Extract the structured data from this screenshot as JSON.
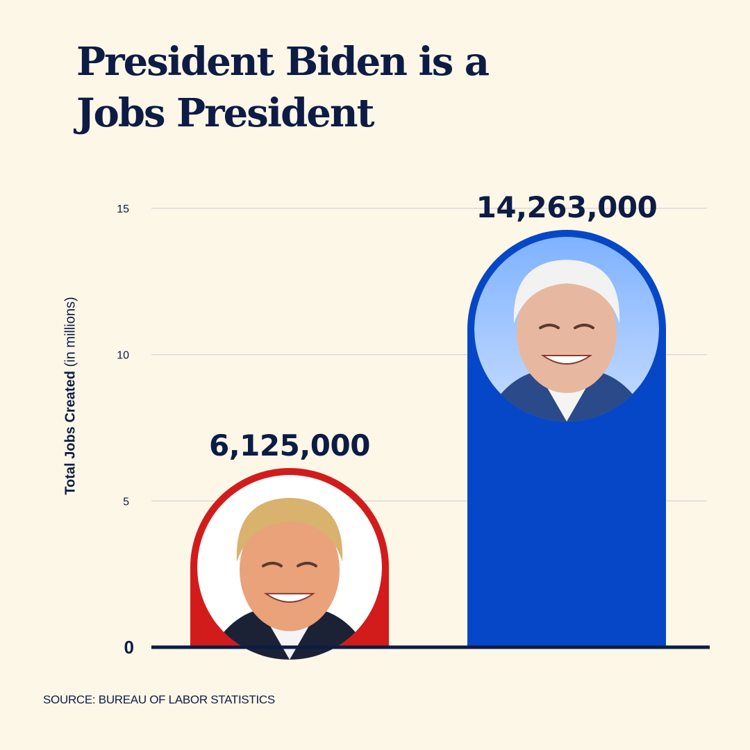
{
  "title": "President Biden is a Jobs President",
  "source": "SOURCE: BUREAU OF LABOR STATISTICS",
  "colors": {
    "background": "#fdf7e8",
    "navy": "#0d1c45",
    "trump_red": "#d21c1c",
    "biden_blue": "#0647c8",
    "grid": "#d9d9d9"
  },
  "chart_data": {
    "type": "bar",
    "title": "President Biden is a Jobs President",
    "ylabel_bold": "Total Jobs Created",
    "ylabel_rest": "(in millions)",
    "ylim": [
      0,
      17.5
    ],
    "yticks": [
      0,
      5,
      10,
      15
    ],
    "grid": true,
    "categories": [
      "Trump",
      "Biden"
    ],
    "values": [
      6.125,
      14.263
    ],
    "data_labels": [
      "6,125,000",
      "14,263,000"
    ],
    "bar_colors": [
      "#d21c1c",
      "#0647c8"
    ],
    "icons": [
      "trump-portrait-icon",
      "biden-portrait-icon"
    ]
  }
}
